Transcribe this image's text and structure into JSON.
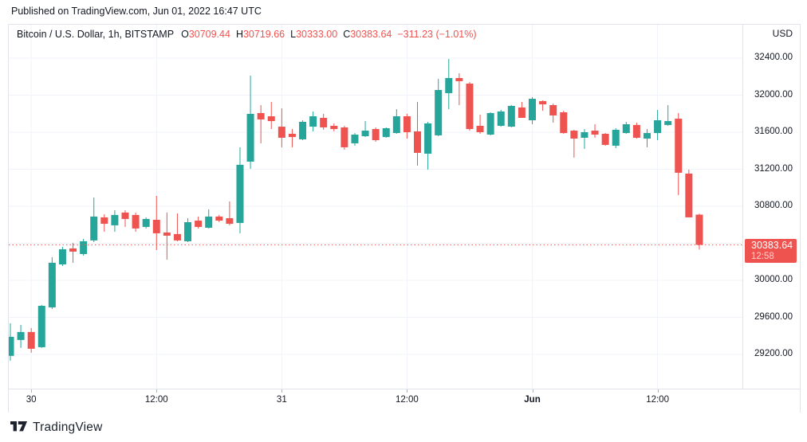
{
  "published_bar": {
    "text": "Published on TradingView.com, Jun 01, 2022 16:47 UTC"
  },
  "header": {
    "symbol_title": "Bitcoin / U.S. Dollar, 1h, BITSTAMP",
    "ohlc": [
      {
        "label": "O",
        "value": "30709.44"
      },
      {
        "label": "H",
        "value": "30719.66"
      },
      {
        "label": "L",
        "value": "30333.00"
      },
      {
        "label": "C",
        "value": "30383.64"
      }
    ],
    "change_text": "−311.23 (−1.01%)"
  },
  "price_axis": {
    "currency": "USD",
    "tick_labels": [
      "32400.00",
      "32000.00",
      "31600.00",
      "31200.00",
      "30800.00",
      "30000.00",
      "29600.00",
      "29200.00"
    ],
    "tick_prices": [
      32400,
      32000,
      31600,
      31200,
      30800,
      30000,
      29600,
      29200
    ],
    "hidden_gridline_prices": [
      30400
    ],
    "last_price_label": {
      "price": "30383.64",
      "countdown": "12:58"
    }
  },
  "time_axis": {
    "ticks": [
      {
        "label": "30",
        "candle_index": 2,
        "bold": false
      },
      {
        "label": "12:00",
        "candle_index": 14,
        "bold": false
      },
      {
        "label": "31",
        "candle_index": 26,
        "bold": false
      },
      {
        "label": "12:00",
        "candle_index": 38,
        "bold": false
      },
      {
        "label": "Jun",
        "candle_index": 50,
        "bold": true
      },
      {
        "label": "12:00",
        "candle_index": 62,
        "bold": false
      }
    ]
  },
  "footer": {
    "brand": "TradingView"
  },
  "colors": {
    "up": "#26a69a",
    "down": "#ef5350",
    "grid": "#f0f3fa",
    "border": "#e0e3eb",
    "axis_text": "#131722",
    "last_price_bg": "#ef5350",
    "dotted_line": "#ef5350"
  },
  "chart_data": {
    "type": "candlestick",
    "title": "Bitcoin / U.S. Dollar",
    "exchange": "BITSTAMP",
    "interval": "1h",
    "currency": "USD",
    "ylim": [
      28830,
      32770
    ],
    "grid": true,
    "last_close": 30383.64,
    "candles": [
      [
        29184,
        29536,
        29132,
        29390
      ],
      [
        29356,
        29519,
        29270,
        29442
      ],
      [
        29442,
        29485,
        29218,
        29261
      ],
      [
        29278,
        29733,
        29270,
        29725
      ],
      [
        29708,
        30250,
        29691,
        30190
      ],
      [
        30172,
        30362,
        30155,
        30336
      ],
      [
        30345,
        30405,
        30190,
        30310
      ],
      [
        30284,
        30448,
        30267,
        30422
      ],
      [
        30431,
        30895,
        30413,
        30689
      ],
      [
        30680,
        30714,
        30525,
        30611
      ],
      [
        30594,
        30757,
        30525,
        30706
      ],
      [
        30732,
        30757,
        30577,
        30663
      ],
      [
        30706,
        30732,
        30525,
        30560
      ],
      [
        30577,
        30680,
        30560,
        30663
      ],
      [
        30654,
        30912,
        30327,
        30508
      ],
      [
        30517,
        30732,
        30224,
        30482
      ],
      [
        30500,
        30723,
        30422,
        30431
      ],
      [
        30422,
        30671,
        30413,
        30628
      ],
      [
        30645,
        30689,
        30560,
        30577
      ],
      [
        30568,
        30766,
        30560,
        30689
      ],
      [
        30689,
        30706,
        30628,
        30645
      ],
      [
        30671,
        30852,
        30594,
        30611
      ],
      [
        30620,
        31437,
        30508,
        31248
      ],
      [
        31282,
        32211,
        31205,
        31798
      ],
      [
        31807,
        31893,
        31480,
        31738
      ],
      [
        31772,
        31927,
        31634,
        31720
      ],
      [
        31660,
        31858,
        31437,
        31540
      ],
      [
        31583,
        31634,
        31437,
        31548
      ],
      [
        31523,
        31729,
        31514,
        31712
      ],
      [
        31660,
        31824,
        31609,
        31772
      ],
      [
        31755,
        31798,
        31626,
        31652
      ],
      [
        31669,
        31695,
        31609,
        31634
      ],
      [
        31652,
        31669,
        31411,
        31437
      ],
      [
        31480,
        31591,
        31454,
        31574
      ],
      [
        31557,
        31720,
        31548,
        31617
      ],
      [
        31634,
        31652,
        31497,
        31514
      ],
      [
        31548,
        31652,
        31540,
        31643
      ],
      [
        31591,
        31849,
        31583,
        31772
      ],
      [
        31772,
        31798,
        31531,
        31600
      ],
      [
        31609,
        31927,
        31239,
        31377
      ],
      [
        31368,
        31712,
        31196,
        31695
      ],
      [
        31566,
        32176,
        31557,
        32056
      ],
      [
        32022,
        32391,
        31849,
        32185
      ],
      [
        32185,
        32237,
        31893,
        32151
      ],
      [
        32125,
        32142,
        31617,
        31634
      ],
      [
        31669,
        31789,
        31583,
        31600
      ],
      [
        31574,
        31815,
        31566,
        31807
      ],
      [
        31669,
        31841,
        31660,
        31824
      ],
      [
        31660,
        31893,
        31652,
        31884
      ],
      [
        31867,
        31927,
        31755,
        31755
      ],
      [
        31729,
        31979,
        31686,
        31961
      ],
      [
        31936,
        31944,
        31832,
        31901
      ],
      [
        31893,
        31910,
        31703,
        31781
      ],
      [
        31815,
        31832,
        31583,
        31591
      ],
      [
        31617,
        31626,
        31325,
        31531
      ],
      [
        31540,
        31634,
        31420,
        31600
      ],
      [
        31617,
        31686,
        31540,
        31574
      ],
      [
        31583,
        31591,
        31454,
        31463
      ],
      [
        31454,
        31643,
        31428,
        31626
      ],
      [
        31591,
        31712,
        31583,
        31686
      ],
      [
        31678,
        31703,
        31531,
        31540
      ],
      [
        31531,
        31634,
        31437,
        31591
      ],
      [
        31591,
        31841,
        31514,
        31729
      ],
      [
        31678,
        31893,
        31669,
        31720
      ],
      [
        31746,
        31807,
        30921,
        31162
      ],
      [
        31153,
        31196,
        30680,
        30680
      ],
      [
        30709.44,
        30719.66,
        30333.0,
        30383.64
      ]
    ]
  }
}
